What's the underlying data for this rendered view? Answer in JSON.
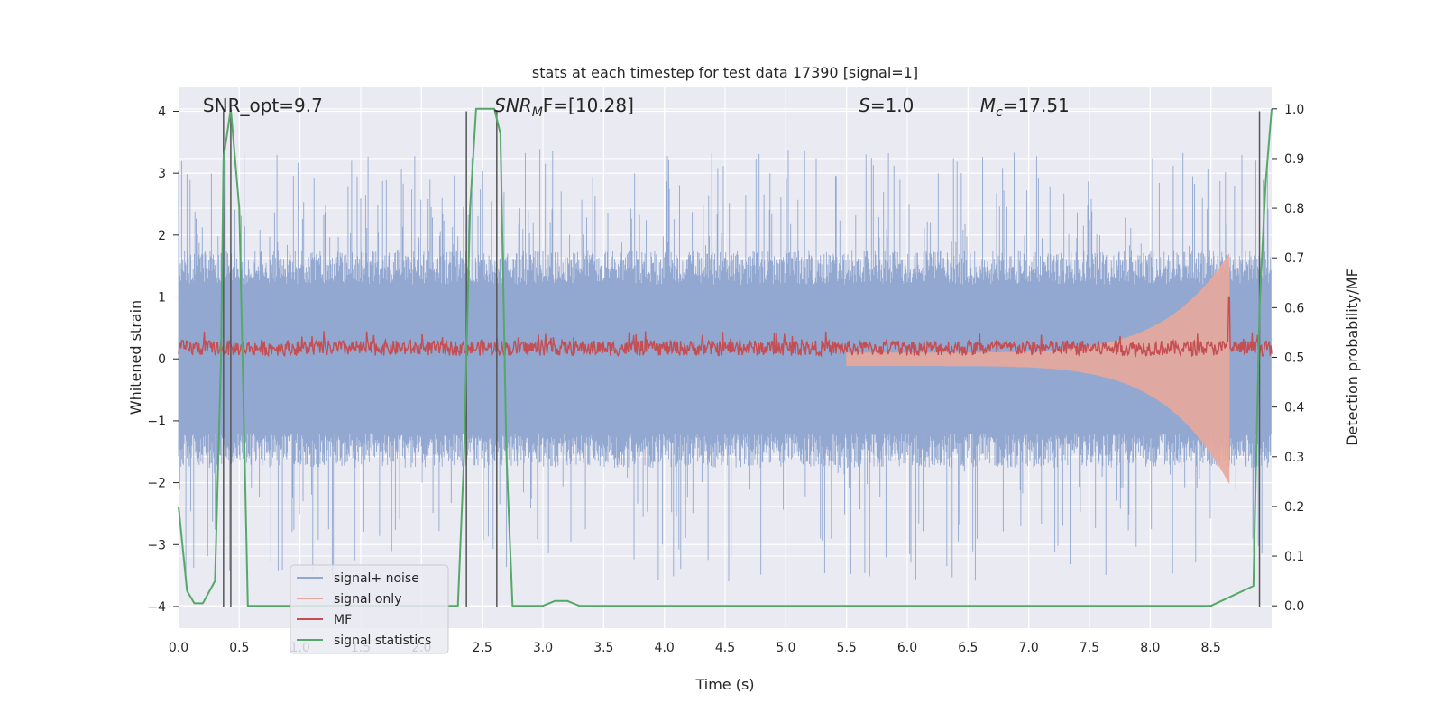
{
  "chart_data": {
    "type": "line",
    "title": "stats at each timestep for test data 17390 [signal=1]",
    "xlabel": "Time (s)",
    "ylabel": "Whitened strain",
    "ylabel_right": "Detection probability/MF",
    "xlim": [
      0.0,
      9.0
    ],
    "ylim": [
      -4.35,
      4.4
    ],
    "ylim_right": [
      -0.045,
      1.045
    ],
    "x_ticks": [
      "0.0",
      "0.5",
      "1.0",
      "1.5",
      "2.0",
      "2.5",
      "3.0",
      "3.5",
      "4.0",
      "4.5",
      "5.0",
      "5.5",
      "6.0",
      "6.5",
      "7.0",
      "7.5",
      "8.0",
      "8.5"
    ],
    "y_ticks": [
      "−4",
      "−3",
      "−2",
      "−1",
      "0",
      "1",
      "2",
      "3",
      "4"
    ],
    "y_ticks_right": [
      "0.0",
      "0.1",
      "0.2",
      "0.3",
      "0.4",
      "0.5",
      "0.6",
      "0.7",
      "0.8",
      "0.9",
      "1.0"
    ],
    "grid": true,
    "legend_position": "lower-left",
    "annotations": [
      {
        "base": "SNR_opt=9.7",
        "sub": "",
        "rest": "",
        "italic": false,
        "x": 0.2
      },
      {
        "base": "SNR",
        "sub": "M",
        "rest": "F=[10.28]",
        "italic": true,
        "x": 2.6
      },
      {
        "base": "S",
        "sub": "",
        "rest": "=1.0",
        "italic": true,
        "x": 5.6
      },
      {
        "base": "M",
        "sub": "c",
        "rest": "=17.51",
        "italic": true,
        "x": 6.6
      }
    ],
    "vertical_lines_x": [
      0.37,
      0.43,
      2.37,
      2.62,
      8.9
    ],
    "series": [
      {
        "name": "signal+ noise",
        "color": "#92a8d1",
        "axis": "left",
        "typical_range": [
          -1.6,
          1.6
        ],
        "spike_range": [
          -3.6,
          3.4
        ]
      },
      {
        "name": "signal only",
        "color": "#e8a79a",
        "axis": "left",
        "chirp": {
          "start_x": 5.5,
          "end_x": 8.65,
          "peak_up": 1.6,
          "peak_down": -1.9
        }
      },
      {
        "name": "MF",
        "color": "#c44e52",
        "axis": "left",
        "baseline_range": [
          0.05,
          0.3
        ],
        "peak": {
          "x": 8.65,
          "value": 1.0
        }
      },
      {
        "name": "signal statistics",
        "color": "#55a868",
        "axis": "right",
        "x": [
          0.0,
          0.07,
          0.13,
          0.2,
          0.3,
          0.35,
          0.37,
          0.43,
          0.5,
          0.57,
          0.6,
          0.8,
          1.0,
          1.5,
          2.0,
          2.3,
          2.35,
          2.4,
          2.45,
          2.5,
          2.6,
          2.65,
          2.7,
          2.75,
          2.8,
          3.0,
          3.1,
          3.2,
          3.3,
          3.5,
          4.0,
          5.0,
          6.0,
          7.0,
          8.0,
          8.5,
          8.85,
          8.9,
          8.95,
          9.0
        ],
        "values": [
          0.2,
          0.03,
          0.005,
          0.005,
          0.05,
          0.5,
          0.9,
          1.0,
          0.8,
          0.0,
          0.0,
          0.0,
          0.0,
          0.0,
          0.0,
          0.0,
          0.3,
          0.8,
          1.0,
          1.0,
          1.0,
          0.95,
          0.3,
          0.0,
          0.0,
          0.0,
          0.01,
          0.01,
          0.0,
          0.0,
          0.0,
          0.0,
          0.0,
          0.0,
          0.0,
          0.0,
          0.04,
          0.6,
          0.85,
          1.0
        ]
      }
    ]
  }
}
